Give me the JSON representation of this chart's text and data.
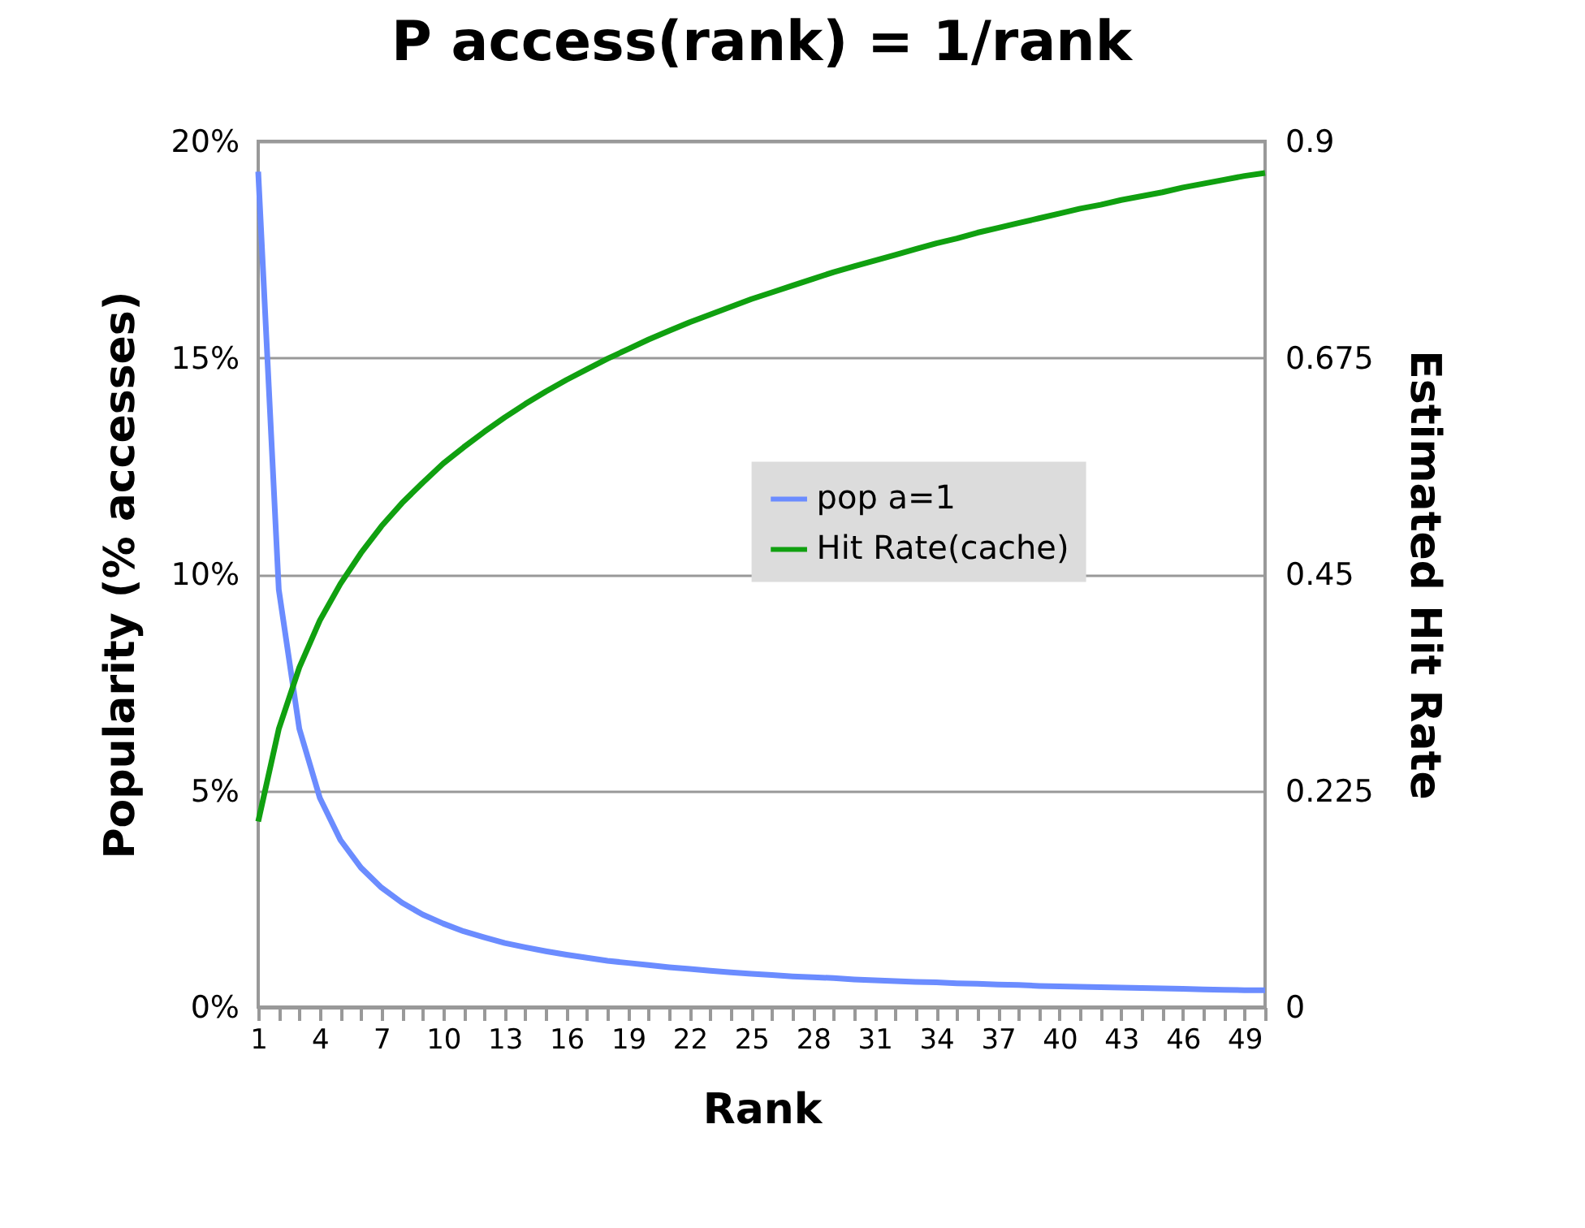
{
  "chart_data": {
    "type": "line",
    "title": "P access(rank) = 1/rank",
    "xlabel": "Rank",
    "ylabel": "Popularity (% accesses)",
    "y2label": "Estimated Hit Rate",
    "categories": [
      "1",
      null,
      null,
      "4",
      null,
      null,
      "7",
      null,
      null,
      "10",
      null,
      null,
      "13",
      null,
      null,
      "16",
      null,
      null,
      "19",
      null,
      null,
      "22",
      null,
      null,
      "25",
      null,
      null,
      "28",
      null,
      null,
      "31",
      null,
      null,
      "34",
      null,
      null,
      "37",
      null,
      null,
      "40",
      null,
      null,
      "43",
      null,
      null,
      "46",
      null,
      null,
      "49",
      null
    ],
    "series": [
      {
        "name": "pop a=1",
        "color": "#6b8cff",
        "values": [
          19.3,
          9.65,
          6.43,
          4.83,
          3.86,
          3.22,
          2.76,
          2.41,
          2.14,
          1.93,
          1.75,
          1.61,
          1.48,
          1.38,
          1.29,
          1.21,
          1.14,
          1.07,
          1.02,
          0.97,
          0.92,
          0.88,
          0.84,
          0.8,
          0.77,
          0.74,
          0.71,
          0.69,
          0.67,
          0.64,
          0.62,
          0.6,
          0.58,
          0.57,
          0.55,
          0.54,
          0.52,
          0.51,
          0.49,
          0.48,
          0.47,
          0.46,
          0.45,
          0.44,
          0.43,
          0.42,
          0.41,
          0.4,
          0.39,
          0.39
        ]
      },
      {
        "name": "Hit Rate(cache)",
        "color": "#10a010",
        "axis": "y2",
        "values": [
          0.193,
          0.289,
          0.353,
          0.402,
          0.44,
          0.472,
          0.5,
          0.524,
          0.545,
          0.565,
          0.582,
          0.598,
          0.613,
          0.627,
          0.64,
          0.652,
          0.663,
          0.674,
          0.684,
          0.694,
          0.703,
          0.712,
          0.72,
          0.728,
          0.736,
          0.743,
          0.75,
          0.757,
          0.764,
          0.77,
          0.776,
          0.782,
          0.788,
          0.794,
          0.799,
          0.805,
          0.81,
          0.815,
          0.82,
          0.825,
          0.83,
          0.834,
          0.839,
          0.843,
          0.847,
          0.852,
          0.856,
          0.86,
          0.864,
          0.867
        ]
      }
    ],
    "ylim": [
      0,
      20
    ],
    "yticks": [
      {
        "value": 0,
        "label": "0%"
      },
      {
        "value": 5,
        "label": "5%"
      },
      {
        "value": 10,
        "label": "10%"
      },
      {
        "value": 15,
        "label": "15%"
      },
      {
        "value": 20,
        "label": "20%"
      }
    ],
    "y2lim": [
      0,
      0.9
    ],
    "y2ticks": [
      0,
      0.225,
      0.45,
      0.675,
      0.9
    ],
    "grid": "y",
    "legend": "right",
    "marker": "none",
    "line_style": "solid"
  }
}
